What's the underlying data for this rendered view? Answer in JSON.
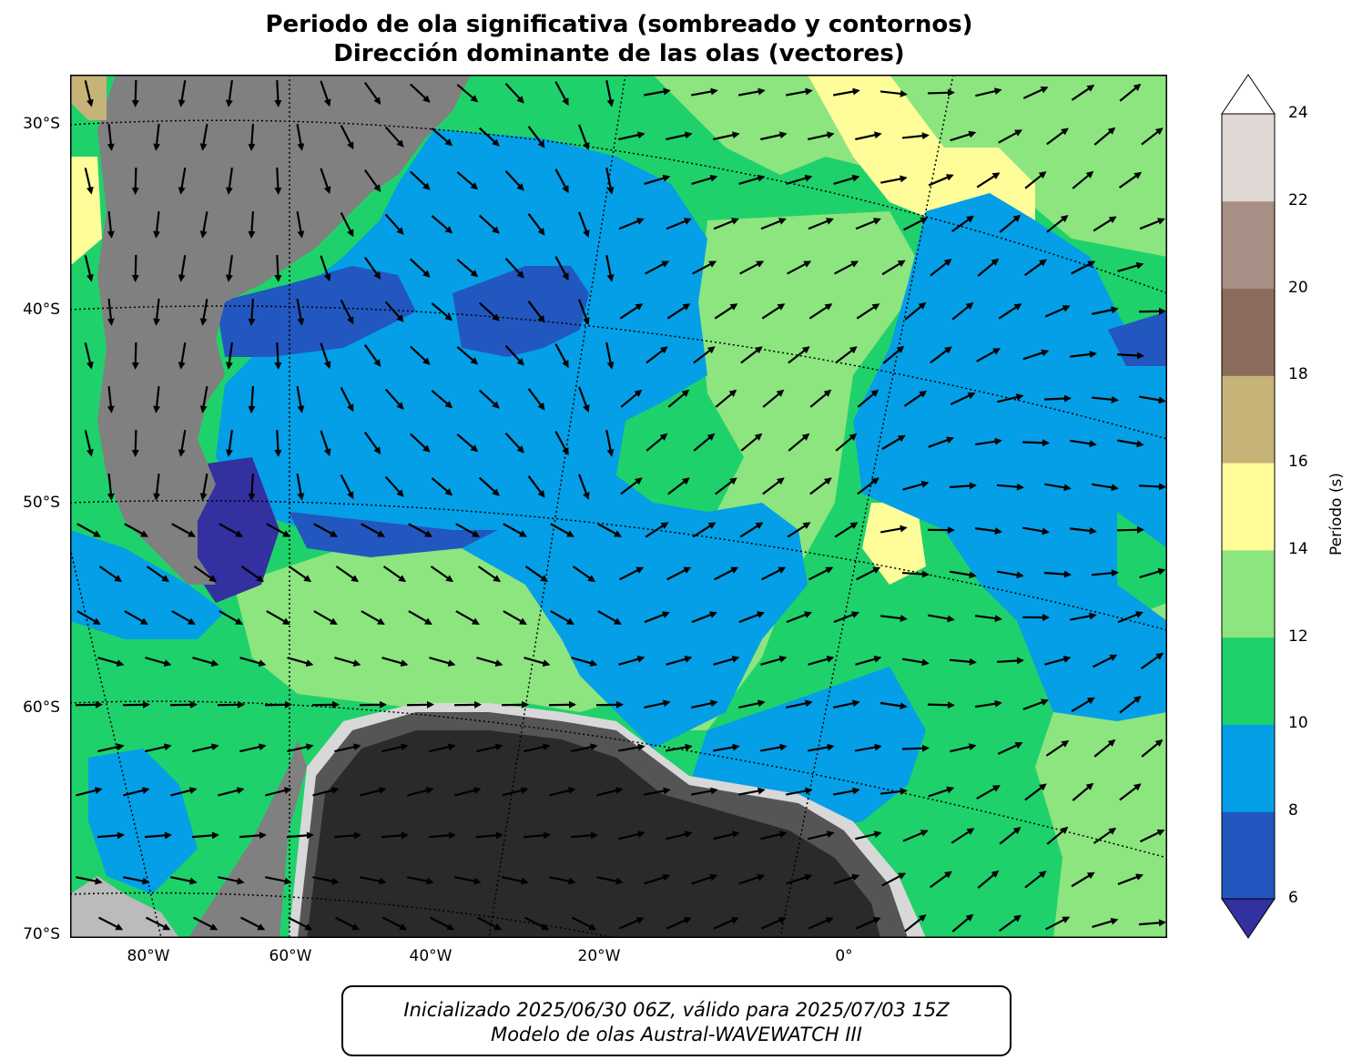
{
  "title": {
    "line1": "Periodo de ola significativa (sombreado y contornos)",
    "line2": "Dirección dominante de las olas (vectores)"
  },
  "map": {
    "lat_labels": [
      "30°S",
      "40°S",
      "50°S",
      "60°S",
      "70°S"
    ],
    "lon_labels": [
      "80°W",
      "60°W",
      "40°W",
      "20°W",
      "0°"
    ]
  },
  "colorbar": {
    "label": "Período (s)",
    "ticks": [
      "6",
      "8",
      "10",
      "12",
      "14",
      "16",
      "18",
      "20",
      "22",
      "24"
    ],
    "bins": [
      {
        "range": "<6",
        "color": "#3330a0"
      },
      {
        "range": "6-8",
        "color": "#2257bf"
      },
      {
        "range": "8-10",
        "color": "#049fe6"
      },
      {
        "range": "10-12",
        "color": "#1fd16b"
      },
      {
        "range": "12-14",
        "color": "#8ce57f"
      },
      {
        "range": "14-16",
        "color": "#fffd99"
      },
      {
        "range": "16-18",
        "color": "#c6b377"
      },
      {
        "range": "18-20",
        "color": "#8c6c5c"
      },
      {
        "range": "20-22",
        "color": "#a78f86"
      },
      {
        "range": "22-24",
        "color": "#e0d8d5"
      },
      {
        "range": ">24",
        "color": "#ffffff"
      }
    ]
  },
  "footer": {
    "line1": "Inicializado 2025/06/30 06Z, válido para 2025/07/03 15Z",
    "line2": "Modelo de olas Austral-WAVEWATCH III"
  },
  "colors": {
    "land": "#808080",
    "ice": "#2a2a2a"
  }
}
